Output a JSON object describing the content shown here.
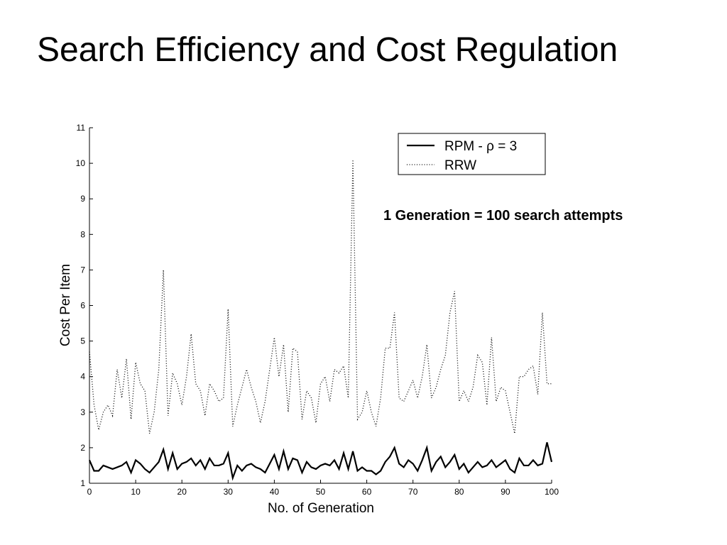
{
  "chart_data": {
    "type": "line",
    "title": "Search Efficiency and Cost Regulation",
    "x_label": "No. of Generation",
    "y_label": "Cost Per Item",
    "annotation": "1 Generation = 100 search attempts",
    "x": [
      0,
      1,
      2,
      3,
      4,
      5,
      6,
      7,
      8,
      9,
      10,
      11,
      12,
      13,
      14,
      15,
      16,
      17,
      18,
      19,
      20,
      21,
      22,
      23,
      24,
      25,
      26,
      27,
      28,
      29,
      30,
      31,
      32,
      33,
      34,
      35,
      36,
      37,
      38,
      39,
      40,
      41,
      42,
      43,
      44,
      45,
      46,
      47,
      48,
      49,
      50,
      51,
      52,
      53,
      54,
      55,
      56,
      57,
      58,
      59,
      60,
      61,
      62,
      63,
      64,
      65,
      66,
      67,
      68,
      69,
      70,
      71,
      72,
      73,
      74,
      75,
      76,
      77,
      78,
      79,
      80,
      81,
      82,
      83,
      84,
      85,
      86,
      87,
      88,
      89,
      90,
      91,
      92,
      93,
      94,
      95,
      96,
      97,
      98,
      99,
      100
    ],
    "series": [
      {
        "name": "RPM -  ρ = 3",
        "color": "#000000",
        "line_style": "solid",
        "values": [
          1.65,
          1.35,
          1.35,
          1.5,
          1.45,
          1.4,
          1.45,
          1.5,
          1.6,
          1.3,
          1.65,
          1.55,
          1.4,
          1.3,
          1.45,
          1.6,
          1.95,
          1.4,
          1.85,
          1.4,
          1.55,
          1.6,
          1.7,
          1.5,
          1.65,
          1.4,
          1.7,
          1.5,
          1.5,
          1.55,
          1.85,
          1.15,
          1.5,
          1.35,
          1.5,
          1.55,
          1.45,
          1.4,
          1.3,
          1.55,
          1.8,
          1.4,
          1.9,
          1.4,
          1.7,
          1.65,
          1.3,
          1.6,
          1.45,
          1.4,
          1.5,
          1.55,
          1.5,
          1.65,
          1.4,
          1.85,
          1.4,
          1.9,
          1.35,
          1.45,
          1.35,
          1.35,
          1.25,
          1.35,
          1.6,
          1.75,
          2.0,
          1.55,
          1.45,
          1.65,
          1.55,
          1.35,
          1.65,
          2.0,
          1.35,
          1.6,
          1.75,
          1.45,
          1.6,
          1.8,
          1.4,
          1.55,
          1.3,
          1.45,
          1.6,
          1.45,
          1.5,
          1.65,
          1.45,
          1.55,
          1.65,
          1.4,
          1.3,
          1.7,
          1.5,
          1.5,
          1.65,
          1.5,
          1.55,
          2.15,
          1.6
        ]
      },
      {
        "name": "RRW",
        "color": "#000000",
        "line_style": "dotted",
        "values": [
          4.7,
          3.2,
          2.5,
          3.0,
          3.2,
          2.9,
          4.2,
          3.4,
          4.5,
          2.8,
          4.4,
          3.8,
          3.6,
          2.4,
          3.0,
          4.2,
          7.0,
          2.9,
          4.1,
          3.8,
          3.2,
          4.0,
          5.2,
          3.8,
          3.6,
          2.9,
          3.8,
          3.6,
          3.3,
          3.4,
          5.9,
          2.6,
          3.2,
          3.7,
          4.2,
          3.7,
          3.3,
          2.7,
          3.3,
          4.2,
          5.1,
          4.0,
          4.9,
          3.0,
          4.8,
          4.7,
          2.8,
          3.6,
          3.4,
          2.7,
          3.8,
          4.0,
          3.3,
          4.2,
          4.1,
          4.3,
          3.4,
          10.1,
          2.8,
          3.0,
          3.6,
          3.0,
          2.6,
          3.4,
          4.8,
          4.8,
          5.8,
          3.4,
          3.3,
          3.6,
          3.9,
          3.4,
          4.0,
          4.9,
          3.4,
          3.7,
          4.2,
          4.6,
          5.8,
          6.4,
          3.3,
          3.6,
          3.3,
          3.7,
          4.6,
          4.4,
          3.2,
          5.1,
          3.3,
          3.7,
          3.6,
          3.0,
          2.4,
          4.0,
          4.0,
          4.2,
          4.3,
          3.5,
          5.8,
          3.8,
          3.8
        ]
      }
    ],
    "xlim": [
      0,
      100
    ],
    "xticks": [
      0,
      10,
      20,
      30,
      40,
      50,
      60,
      70,
      80,
      90,
      100
    ],
    "ylim": [
      1,
      11
    ],
    "yticks": [
      1,
      2,
      3,
      4,
      5,
      6,
      7,
      8,
      9,
      10,
      11
    ],
    "grid": false,
    "legend": "top-right"
  }
}
